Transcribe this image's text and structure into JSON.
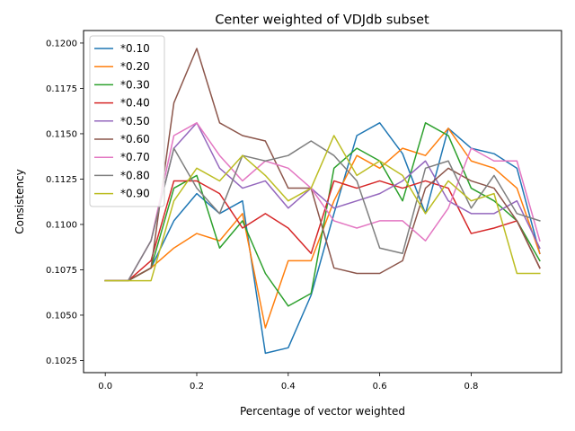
{
  "chart_data": {
    "type": "line",
    "title": "Center weighted of VDJdb subset",
    "xlabel": "Percentage of vector weighted",
    "ylabel": "Consistency",
    "xlim": [
      -0.0475,
      0.9975
    ],
    "ylim": [
      0.10183,
      0.12069
    ],
    "xticks": [
      0.0,
      0.2,
      0.4,
      0.6,
      0.8
    ],
    "xtick_labels": [
      "0.0",
      "0.2",
      "0.4",
      "0.6",
      "0.8"
    ],
    "yticks": [
      0.1025,
      0.105,
      0.1075,
      0.11,
      0.1125,
      0.115,
      0.1175,
      0.12
    ],
    "ytick_labels": [
      "0.1025",
      "0.1050",
      "0.1075",
      "0.1100",
      "0.1125",
      "0.1150",
      "0.1175",
      "0.1200"
    ],
    "grid": false,
    "legend_position": "upper-left",
    "x": [
      0.0,
      0.05,
      0.1,
      0.15,
      0.2,
      0.25,
      0.3,
      0.35,
      0.4,
      0.45,
      0.5,
      0.55,
      0.6,
      0.65,
      0.7,
      0.75,
      0.8,
      0.85,
      0.9,
      0.95
    ],
    "series": [
      {
        "name": "*0.10",
        "color": "#1f77b4",
        "values": [
          0.1069,
          0.1069,
          0.1076,
          0.1102,
          0.1117,
          0.1106,
          0.1113,
          0.1029,
          0.1032,
          0.1061,
          0.1106,
          0.1149,
          0.1156,
          0.1139,
          0.1106,
          0.1153,
          0.1142,
          0.1139,
          0.1131,
          0.1084
        ]
      },
      {
        "name": "*0.20",
        "color": "#ff7f0e",
        "values": [
          0.1069,
          0.1069,
          0.1076,
          0.1087,
          0.1095,
          0.1091,
          0.1106,
          0.1043,
          0.108,
          0.108,
          0.1113,
          0.1138,
          0.1131,
          0.1142,
          0.1138,
          0.1153,
          0.1135,
          0.1131,
          0.112,
          0.1084
        ]
      },
      {
        "name": "*0.30",
        "color": "#2ca02c",
        "values": [
          0.1069,
          0.1069,
          0.1076,
          0.112,
          0.1127,
          0.1087,
          0.1102,
          0.1073,
          0.1055,
          0.1062,
          0.1131,
          0.1142,
          0.1135,
          0.1113,
          0.1156,
          0.1149,
          0.112,
          0.1113,
          0.1102,
          0.108
        ]
      },
      {
        "name": "*0.40",
        "color": "#d62728",
        "values": [
          0.1069,
          0.1069,
          0.108,
          0.1124,
          0.1124,
          0.1117,
          0.1098,
          0.1106,
          0.1098,
          0.1084,
          0.1124,
          0.112,
          0.1124,
          0.112,
          0.1124,
          0.112,
          0.1095,
          0.1098,
          0.1102,
          0.1076
        ]
      },
      {
        "name": "*0.50",
        "color": "#9467bd",
        "values": [
          0.1069,
          0.1069,
          0.1091,
          0.1142,
          0.1156,
          0.1131,
          0.112,
          0.1124,
          0.1109,
          0.112,
          0.1109,
          0.1113,
          0.1117,
          0.1124,
          0.1135,
          0.1113,
          0.1106,
          0.1106,
          0.1113,
          0.1087
        ]
      },
      {
        "name": "*0.60",
        "color": "#8c564b",
        "values": [
          0.1069,
          0.1069,
          0.1076,
          0.1167,
          0.1197,
          0.1156,
          0.1149,
          0.1146,
          0.112,
          0.112,
          0.1076,
          0.1073,
          0.1073,
          0.108,
          0.112,
          0.1131,
          0.1124,
          0.112,
          0.1102,
          0.1076
        ]
      },
      {
        "name": "*0.70",
        "color": "#e377c2",
        "values": [
          0.1069,
          0.1069,
          0.1091,
          0.1149,
          0.1156,
          0.1138,
          0.1124,
          0.1135,
          0.1131,
          0.112,
          0.1102,
          0.1098,
          0.1102,
          0.1102,
          0.1091,
          0.1109,
          0.1142,
          0.1135,
          0.1135,
          0.1091
        ]
      },
      {
        "name": "*0.80",
        "color": "#7f7f7f",
        "values": [
          0.1069,
          0.1069,
          0.1091,
          0.1142,
          0.112,
          0.1106,
          0.1138,
          0.1135,
          0.1138,
          0.1146,
          0.1138,
          0.1124,
          0.1087,
          0.1084,
          0.1131,
          0.1135,
          0.1109,
          0.1127,
          0.1106,
          0.1102
        ]
      },
      {
        "name": "*0.90",
        "color": "#bcbd22",
        "values": [
          0.1069,
          0.1069,
          0.1069,
          0.1113,
          0.1131,
          0.1124,
          0.1138,
          0.1127,
          0.1113,
          0.112,
          0.1149,
          0.1127,
          0.1135,
          0.1127,
          0.1106,
          0.1124,
          0.1113,
          0.1117,
          0.1073,
          0.1073
        ]
      }
    ]
  }
}
